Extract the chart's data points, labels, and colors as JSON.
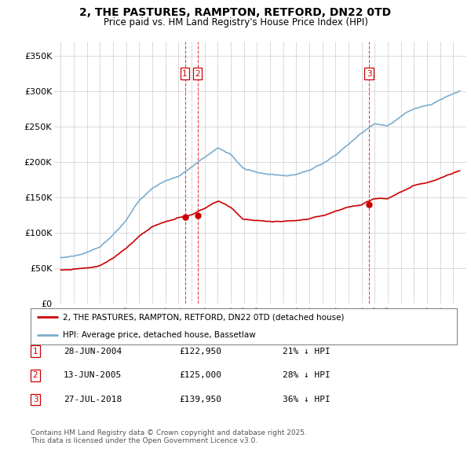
{
  "title": "2, THE PASTURES, RAMPTON, RETFORD, DN22 0TD",
  "subtitle": "Price paid vs. HM Land Registry's House Price Index (HPI)",
  "bg_color": "#ffffff",
  "plot_bg_color": "#ffffff",
  "grid_color": "#cccccc",
  "red_line_color": "#cc0000",
  "blue_line_color": "#7aadcf",
  "sale_marker_color": "#cc0000",
  "ylim": [
    0,
    370000
  ],
  "yticks": [
    0,
    50000,
    100000,
    150000,
    200000,
    250000,
    300000,
    350000
  ],
  "ytick_labels": [
    "£0",
    "£50K",
    "£100K",
    "£150K",
    "£200K",
    "£250K",
    "£300K",
    "£350K"
  ],
  "sale1_x": 2004.49,
  "sale1_price": 122950,
  "sale2_x": 2005.45,
  "sale2_price": 125000,
  "sale3_x": 2018.57,
  "sale3_price": 139950,
  "legend_red": "2, THE PASTURES, RAMPTON, RETFORD, DN22 0TD (detached house)",
  "legend_blue": "HPI: Average price, detached house, Bassetlaw",
  "footnote": "Contains HM Land Registry data © Crown copyright and database right 2025.\nThis data is licensed under the Open Government Licence v3.0.",
  "table_entries": [
    {
      "num": "1",
      "date": "28-JUN-2004",
      "price": "£122,950",
      "pct": "21% ↓ HPI"
    },
    {
      "num": "2",
      "date": "13-JUN-2005",
      "price": "£125,000",
      "pct": "28% ↓ HPI"
    },
    {
      "num": "3",
      "date": "27-JUL-2018",
      "price": "£139,950",
      "pct": "36% ↓ HPI"
    }
  ]
}
